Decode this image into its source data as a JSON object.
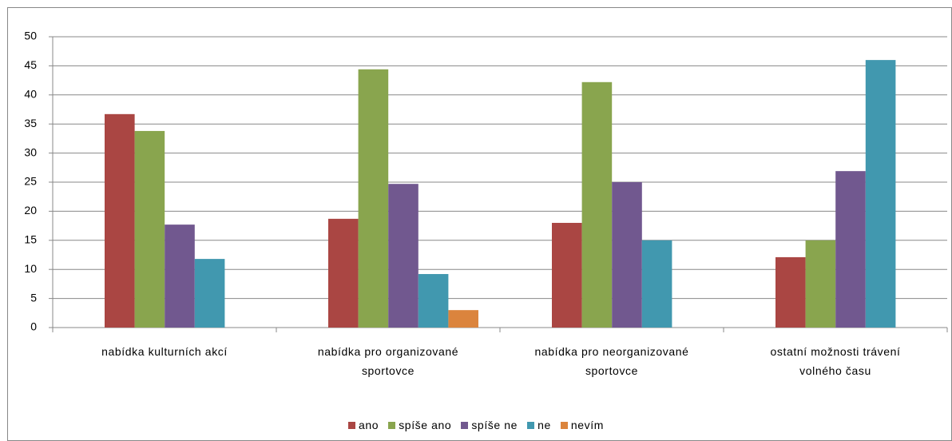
{
  "chart_data": {
    "type": "bar",
    "categories": [
      "nabídka kulturních akcí",
      "nabídka pro organizované sportovce",
      "nabídka pro neorganizované sportovce",
      "ostatní možnosti trávení volného času"
    ],
    "series": [
      {
        "name": "ano",
        "color": "#aa4643",
        "values": [
          36.7,
          18.7,
          18.0,
          12.1
        ]
      },
      {
        "name": "spíše ano",
        "color": "#89a54e",
        "values": [
          33.8,
          44.4,
          42.2,
          15.0
        ]
      },
      {
        "name": "spíše ne",
        "color": "#71588f",
        "values": [
          17.7,
          24.7,
          25.0,
          26.9
        ]
      },
      {
        "name": "ne",
        "color": "#4198af",
        "values": [
          11.8,
          9.2,
          15.0,
          46.0
        ]
      },
      {
        "name": "nevím",
        "color": "#db843d",
        "values": [
          0,
          3.0,
          0,
          0
        ]
      }
    ],
    "ylim": [
      0,
      50
    ],
    "yticks": [
      0,
      5,
      10,
      15,
      20,
      25,
      30,
      35,
      40,
      45,
      50
    ],
    "grid": true,
    "legend": "bottom"
  }
}
